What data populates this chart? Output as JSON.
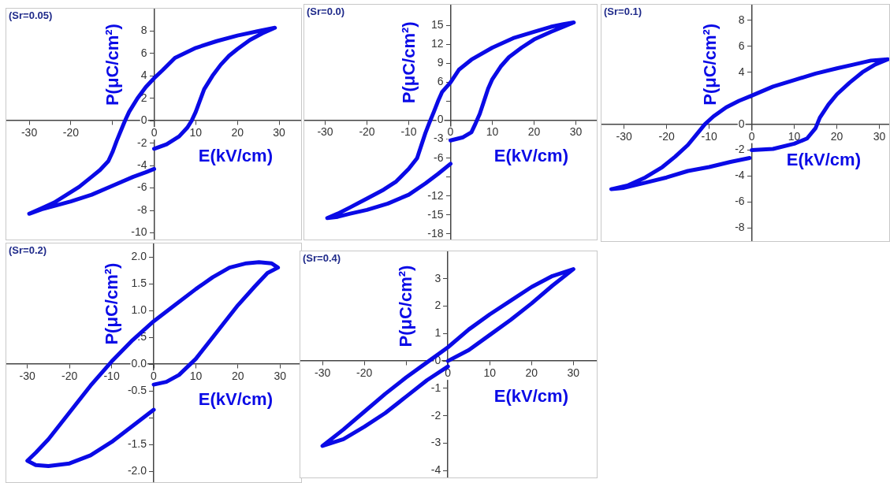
{
  "chart_data": [
    {
      "type": "line",
      "title": "(Sr=0.05)",
      "xlabel": "E(kV/cm)",
      "ylabel": "P(μC/cm²)",
      "color": "#0a0ae6",
      "x": [
        0,
        3,
        6,
        8,
        9,
        10,
        11,
        12,
        14,
        16,
        18,
        20,
        23,
        26,
        29,
        25,
        20,
        15,
        10,
        5,
        2,
        0,
        -2,
        -4,
        -6,
        -7,
        -8,
        -9,
        -10,
        -11,
        -13,
        -15,
        -18,
        -21,
        -24,
        -27,
        -30,
        -27,
        -24,
        -20,
        -15,
        -10,
        -5,
        -2,
        0
      ],
      "values": [
        -2.5,
        -2.1,
        -1.4,
        -0.6,
        0,
        0.8,
        1.8,
        2.8,
        4.0,
        5.0,
        5.8,
        6.4,
        7.2,
        7.8,
        8.3,
        8.0,
        7.6,
        7.1,
        6.5,
        5.6,
        4.5,
        3.8,
        3.0,
        2.0,
        0.8,
        0,
        -0.9,
        -1.8,
        -2.8,
        -3.6,
        -4.4,
        -5.0,
        -5.9,
        -6.6,
        -7.3,
        -7.8,
        -8.3,
        -7.9,
        -7.6,
        -7.2,
        -6.6,
        -5.8,
        -5.0,
        -4.6,
        -4.3
      ],
      "xlim": [
        -35.5,
        35.3
      ],
      "ylim": [
        -10.6,
        10
      ],
      "xticks": [
        -30,
        -20,
        {
          "value": -10,
          "label": null
        },
        0,
        10,
        20,
        30
      ],
      "yticks": [
        -10,
        -8,
        -6,
        -4,
        -2,
        0,
        2,
        4,
        6,
        8
      ]
    },
    {
      "type": "line",
      "title": "(Sr=0.0)",
      "xlabel": "E(kV/cm)",
      "ylabel": "P(μC/cm²)",
      "color": "#0a0ae6",
      "x": [
        0,
        3,
        5,
        6,
        7,
        8,
        9,
        10,
        12,
        14,
        17,
        20,
        24,
        27,
        29.5,
        27,
        24,
        20,
        15,
        10,
        5,
        2,
        0,
        -2,
        -3,
        -4,
        -5,
        -6,
        -7,
        -8,
        -10,
        -13,
        -16,
        -20,
        -24,
        -27,
        -29.5,
        -27,
        -24,
        -20,
        -15,
        -10,
        -6,
        -3,
        0
      ],
      "values": [
        -3.2,
        -2.7,
        -1.9,
        -0.5,
        1,
        3,
        5,
        6.5,
        8.5,
        10,
        11.5,
        12.8,
        14.0,
        14.8,
        15.5,
        15.2,
        14.8,
        14.0,
        13.0,
        11.5,
        9.6,
        8,
        6,
        4.5,
        3,
        1.3,
        -0.3,
        -2,
        -4,
        -6,
        -7.7,
        -9.7,
        -11,
        -12.4,
        -13.8,
        -14.8,
        -15.5,
        -15.3,
        -14.8,
        -14.2,
        -13.2,
        -11.8,
        -10,
        -8.5,
        -6.9
      ],
      "xlim": [
        -35,
        35
      ],
      "ylim": [
        -18.9,
        18.3
      ],
      "xticks": [
        -30,
        -20,
        -10,
        0,
        10,
        20,
        30
      ],
      "yticks": [
        -18,
        -15,
        -12,
        {
          "value": -9,
          "label": null
        },
        -6,
        -3,
        0,
        {
          "value": 3,
          "label": null
        },
        6,
        9,
        12,
        15
      ]
    },
    {
      "type": "line",
      "title": "(Sr=0.1)",
      "xlabel": "E(kV/cm)",
      "ylabel": "P(μC/cm²)",
      "color": "#0a0ae6",
      "x": [
        0,
        5,
        10,
        13,
        15,
        16,
        18,
        20,
        23,
        26,
        29,
        32,
        28,
        24,
        20,
        15,
        10,
        5,
        0,
        -3,
        -6,
        -9,
        -11,
        -13,
        -15,
        -18,
        -21,
        -25,
        -29,
        -33,
        -30,
        -25,
        -20,
        -15,
        -10,
        -5,
        -0.5
      ],
      "values": [
        -2.0,
        -1.9,
        -1.5,
        -1.1,
        -0.3,
        0.5,
        1.5,
        2.3,
        3.2,
        4,
        4.6,
        5,
        4.9,
        4.6,
        4.3,
        3.9,
        3.4,
        2.9,
        2.2,
        1.8,
        1.3,
        0.6,
        0,
        -0.8,
        -1.6,
        -2.5,
        -3.3,
        -4.1,
        -4.7,
        -5,
        -4.9,
        -4.5,
        -4.1,
        -3.6,
        -3.3,
        -2.9,
        -2.6
      ],
      "xlim": [
        -35.3,
        32.3
      ],
      "ylim": [
        -9,
        9.2
      ],
      "xticks": [
        -30,
        -20,
        -10,
        0,
        10,
        20,
        30
      ],
      "yticks": [
        -8,
        -6,
        -4,
        -2,
        0,
        {
          "value": 2,
          "label": null
        },
        4,
        6,
        8
      ]
    },
    {
      "type": "line",
      "title": "(Sr=0.2)",
      "xlabel": "E(kV/cm)",
      "ylabel": "P(μC/cm²)",
      "color": "#0a0ae6",
      "x": [
        0,
        3,
        6,
        8,
        10,
        13,
        16,
        20,
        24,
        27,
        29.5,
        28,
        25,
        22,
        18,
        14,
        10,
        5,
        0,
        -5,
        -10,
        -15,
        -20,
        -25,
        -28,
        -30,
        -28,
        -25,
        -20,
        -15,
        -10,
        -5,
        0
      ],
      "values": [
        -0.38,
        -0.33,
        -0.2,
        -0.05,
        0.1,
        0.4,
        0.7,
        1.1,
        1.45,
        1.7,
        1.8,
        1.88,
        1.9,
        1.88,
        1.8,
        1.62,
        1.4,
        1.1,
        0.8,
        0.45,
        0.05,
        -0.4,
        -0.9,
        -1.4,
        -1.65,
        -1.8,
        -1.88,
        -1.9,
        -1.85,
        -1.7,
        -1.45,
        -1.15,
        -0.85
      ],
      "xlim": [
        -35,
        35
      ],
      "ylim": [
        -2.2,
        2.25
      ],
      "xticks": [
        -30,
        -20,
        -10,
        0,
        10,
        20,
        30
      ],
      "yticks": [
        {
          "value": -2,
          "label": "-2.0"
        },
        {
          "value": -1.5,
          "label": "-1.5"
        },
        {
          "value": -1,
          "label": null
        },
        {
          "value": -0.5,
          "label": "-0.5"
        },
        {
          "value": 0,
          "label": "0.0"
        },
        {
          "value": 0.5,
          "label": ".5"
        },
        {
          "value": 1,
          "label": "1.0"
        },
        {
          "value": 1.5,
          "label": "1.5"
        },
        {
          "value": 2,
          "label": "2.0"
        }
      ]
    },
    {
      "type": "line",
      "title": "(Sr=0.4)",
      "xlabel": "E(kV/cm)",
      "ylabel": "P(μC/cm²)",
      "color": "#0a0ae6",
      "x": [
        0,
        5,
        10,
        15,
        20,
        25,
        30,
        25,
        20,
        15,
        10,
        5,
        0,
        -5,
        -10,
        -15,
        -20,
        -25,
        -30,
        -25,
        -20,
        -15,
        -10,
        -5,
        0
      ],
      "values": [
        0,
        0.4,
        0.95,
        1.5,
        2.1,
        2.75,
        3.35,
        3.1,
        2.7,
        2.2,
        1.7,
        1.15,
        0.5,
        -0.05,
        -0.6,
        -1.2,
        -1.85,
        -2.5,
        -3.1,
        -2.85,
        -2.4,
        -1.9,
        -1.3,
        -0.7,
        -0.2
      ],
      "xlim": [
        -35.3,
        35.6
      ],
      "ylim": [
        -4.25,
        4
      ],
      "xticks": [
        -30,
        -20,
        {
          "value": -10,
          "label": null
        },
        0,
        10,
        20,
        30
      ],
      "yticks": [
        -4,
        -3,
        -2,
        -1,
        0,
        1,
        2,
        3
      ]
    }
  ]
}
